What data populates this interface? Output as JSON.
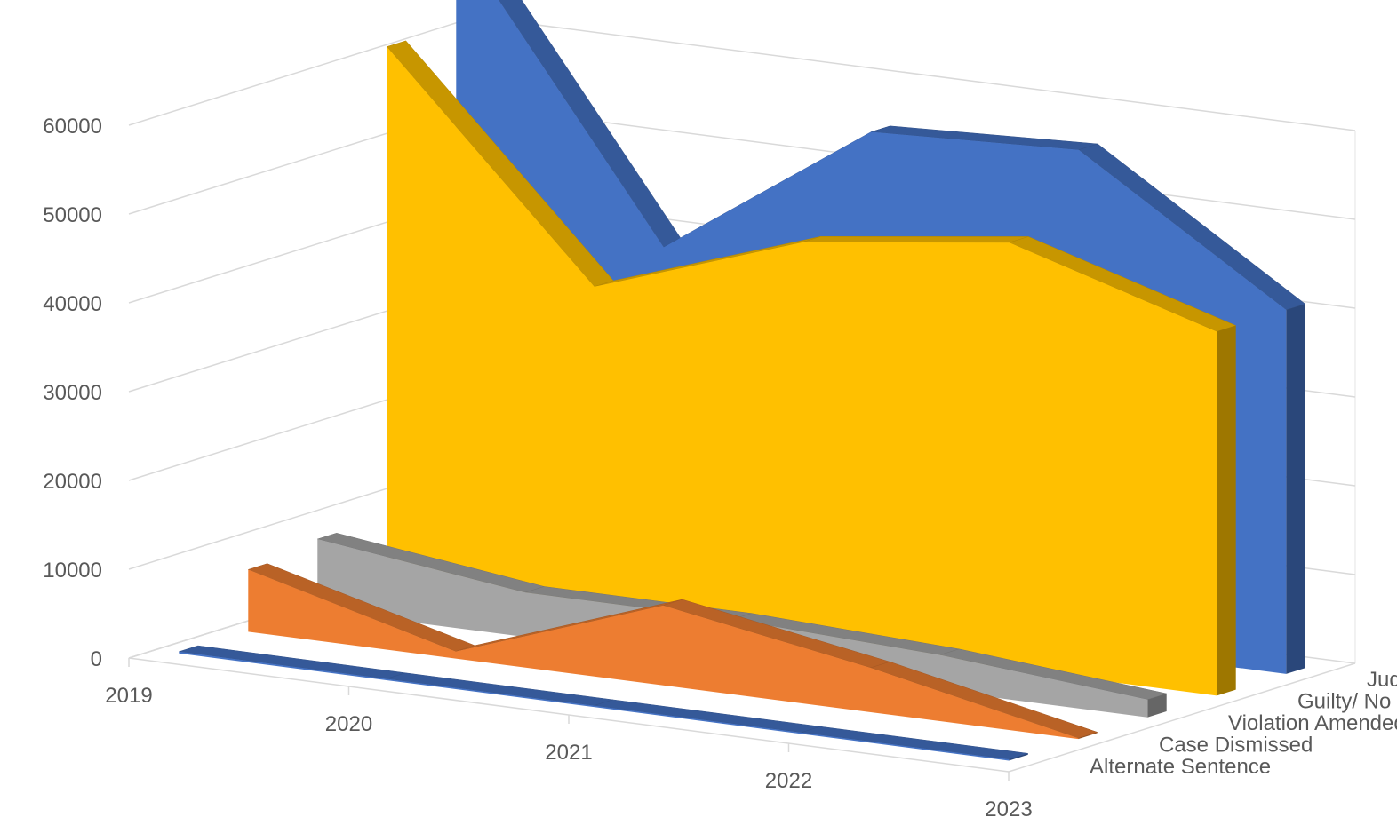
{
  "chart_data": {
    "type": "area",
    "variant": "3d-area",
    "title": "",
    "xlabel": "",
    "ylabel": "",
    "ylim": [
      0,
      60000
    ],
    "grid": true,
    "legend": "none",
    "x": [
      "2019",
      "2020",
      "2021",
      "2022",
      "2023"
    ],
    "y_ticks": [
      "0",
      "10000",
      "20000",
      "30000",
      "40000",
      "50000",
      "60000"
    ],
    "series": [
      {
        "name": "Alternate Sentence",
        "values": [
          200,
          150,
          150,
          150,
          150
        ],
        "color": "#4472C4"
      },
      {
        "name": "Case Dismissed",
        "values": [
          7000,
          800,
          9000,
          5000,
          100
        ],
        "color": "#ED7D31"
      },
      {
        "name": "Violation Amended",
        "values": [
          8000,
          5000,
          5000,
          4000,
          2000
        ],
        "color": "#A5A5A5"
      },
      {
        "name": "Guilty/ No Contest",
        "values": [
          61000,
          37000,
          45000,
          48000,
          41000
        ],
        "color": "#FFC000"
      },
      {
        "name": "Judgments",
        "values": [
          71000,
          39000,
          55000,
          56000,
          41000
        ],
        "color": "#4472C4"
      }
    ]
  }
}
